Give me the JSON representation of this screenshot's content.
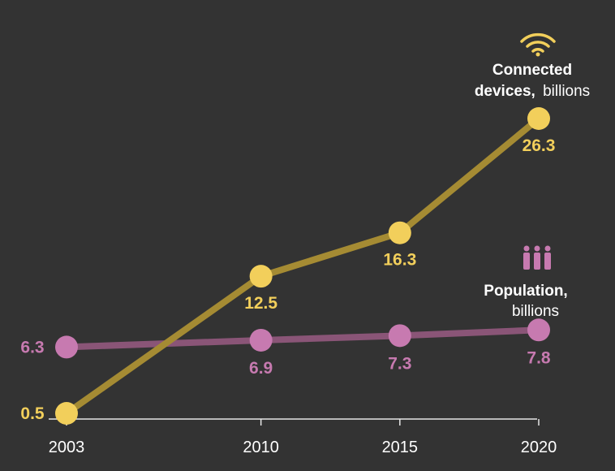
{
  "chart_data": {
    "type": "line",
    "x": [
      2003,
      2010,
      2015,
      2020
    ],
    "x_tick_labels": [
      "2003",
      "2010",
      "2015",
      "2020"
    ],
    "ylim": [
      0,
      28
    ],
    "grid": false,
    "series": [
      {
        "key": "devices",
        "name_bold": "Connected devices,",
        "name_rest": "billions",
        "legend_line1": "Connected",
        "legend_line2_bold": "devices,",
        "legend_line2_rest": "billions",
        "icon": "wifi-icon",
        "color": "#f2cf5b",
        "line_color": "#a58b33",
        "values": [
          0.5,
          12.5,
          16.3,
          26.3
        ],
        "value_labels": [
          "0.5",
          "12.5",
          "16.3",
          "26.3"
        ]
      },
      {
        "key": "population",
        "legend_line1": "Population,",
        "legend_line2": "billions",
        "icon": "people-icon",
        "color": "#c77ab0",
        "line_color": "#8a5577",
        "values": [
          6.3,
          6.9,
          7.3,
          7.8
        ],
        "value_labels": [
          "6.3",
          "6.9",
          "7.3",
          "7.8"
        ]
      }
    ]
  }
}
